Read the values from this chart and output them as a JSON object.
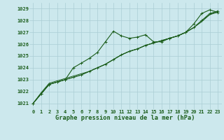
{
  "background_color": "#cce8ed",
  "grid_color": "#aacdd4",
  "line_color": "#1a5c1a",
  "title": "Graphe pression niveau de la mer (hPa)",
  "xlim": [
    -0.5,
    23.5
  ],
  "ylim": [
    1020.5,
    1029.5
  ],
  "yticks": [
    1021,
    1022,
    1023,
    1024,
    1025,
    1026,
    1027,
    1028,
    1029
  ],
  "xticks": [
    0,
    1,
    2,
    3,
    4,
    5,
    6,
    7,
    8,
    9,
    10,
    11,
    12,
    13,
    14,
    15,
    16,
    17,
    18,
    19,
    20,
    21,
    22,
    23
  ],
  "series1_x": [
    0,
    1,
    2,
    3,
    4,
    5,
    6,
    7,
    8,
    9,
    10,
    11,
    12,
    13,
    14,
    15,
    16,
    17,
    18,
    19,
    20,
    21,
    22,
    23
  ],
  "series1_y": [
    1021.0,
    1021.8,
    1022.6,
    1022.8,
    1023.0,
    1024.0,
    1024.4,
    1024.8,
    1025.3,
    1026.2,
    1027.1,
    1026.7,
    1026.5,
    1026.6,
    1026.8,
    1026.2,
    1026.2,
    1026.5,
    1026.7,
    1027.0,
    1027.7,
    1028.6,
    1028.9,
    1028.7
  ],
  "series2_x": [
    0,
    1,
    2,
    3,
    4,
    5,
    6,
    7,
    8,
    9,
    10,
    11,
    12,
    13,
    14,
    15,
    16,
    17,
    18,
    19,
    20,
    21,
    22,
    23
  ],
  "series2_y": [
    1021.0,
    1021.9,
    1022.7,
    1022.9,
    1023.1,
    1023.3,
    1023.5,
    1023.7,
    1024.0,
    1024.3,
    1024.7,
    1025.1,
    1025.4,
    1025.6,
    1025.9,
    1026.1,
    1026.3,
    1026.5,
    1026.7,
    1027.0,
    1027.4,
    1027.9,
    1028.5,
    1028.8
  ],
  "series3_x": [
    0,
    1,
    2,
    3,
    4,
    5,
    6,
    7,
    8,
    9,
    10,
    11,
    12,
    13,
    14,
    15,
    16,
    17,
    18,
    19,
    20,
    21,
    22,
    23
  ],
  "series3_y": [
    1021.0,
    1021.8,
    1022.6,
    1022.8,
    1023.0,
    1023.2,
    1023.4,
    1023.7,
    1024.0,
    1024.3,
    1024.7,
    1025.1,
    1025.4,
    1025.6,
    1025.9,
    1026.1,
    1026.3,
    1026.5,
    1026.7,
    1027.0,
    1027.4,
    1028.0,
    1028.5,
    1028.7
  ],
  "series4_x": [
    0,
    1,
    2,
    3,
    4,
    5,
    6,
    7,
    8,
    9,
    10,
    11,
    12,
    13,
    14,
    15,
    16,
    17,
    18,
    19,
    20,
    21,
    22,
    23
  ],
  "series4_y": [
    1021.0,
    1021.8,
    1022.6,
    1022.8,
    1023.0,
    1023.2,
    1023.4,
    1023.7,
    1024.0,
    1024.3,
    1024.7,
    1025.1,
    1025.4,
    1025.6,
    1025.9,
    1026.1,
    1026.3,
    1026.5,
    1026.7,
    1027.0,
    1027.4,
    1028.0,
    1028.6,
    1028.8
  ],
  "tick_fontsize": 5.0,
  "title_fontsize": 6.2
}
